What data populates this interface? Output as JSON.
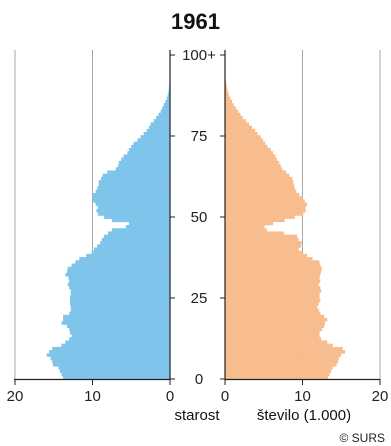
{
  "chart_data": {
    "type": "bar",
    "orientation": "horizontal",
    "subtype": "population-pyramid",
    "title": "1961",
    "xlabel": "število (1.000)",
    "ylabel": "starost",
    "credit": "© SURS",
    "age_ticks": [
      "0",
      "25",
      "50",
      "75",
      "100+"
    ],
    "age_tick_values": [
      0,
      25,
      50,
      75,
      100
    ],
    "x_ticks_left": [
      20,
      10,
      0
    ],
    "x_ticks_right": [
      0,
      10,
      20
    ],
    "xlim": [
      0,
      20
    ],
    "ylim": [
      0,
      100
    ],
    "grid": true,
    "colors": {
      "left": "#7fc4ea",
      "right": "#f8bd8e"
    },
    "series": [
      {
        "side": "left",
        "values": [
          13.8,
          14.0,
          14.2,
          14.4,
          15.1,
          15.2,
          15.4,
          15.9,
          15.6,
          15.2,
          14.0,
          13.5,
          13.0,
          12.7,
          12.9,
          13.0,
          13.3,
          14.0,
          13.8,
          13.8,
          13.0,
          12.8,
          12.8,
          12.9,
          12.9,
          12.9,
          12.8,
          12.8,
          13.0,
          13.2,
          13.0,
          13.1,
          13.5,
          13.3,
          13.2,
          12.7,
          12.2,
          11.7,
          10.8,
          10.1,
          9.8,
          9.4,
          9.0,
          8.8,
          8.5,
          8.0,
          7.5,
          5.7,
          5.3,
          7.5,
          8.5,
          9.3,
          9.5,
          9.3,
          9.6,
          9.9,
          10.0,
          10.0,
          9.6,
          9.4,
          9.2,
          9.2,
          8.9,
          8.7,
          8.1,
          7.0,
          6.7,
          6.6,
          6.3,
          6.0,
          5.5,
          5.3,
          5.0,
          4.7,
          4.2,
          3.8,
          3.4,
          3.0,
          2.7,
          2.5,
          2.1,
          1.8,
          1.5,
          1.2,
          1.0,
          0.8,
          0.6,
          0.4,
          0.3,
          0.2,
          0.15,
          0.1,
          0.07,
          0.05,
          0.03,
          0.02,
          0.01,
          0.01,
          0.005,
          0.003,
          0.01
        ]
      },
      {
        "side": "right",
        "values": [
          13.3,
          13.5,
          13.7,
          13.9,
          14.4,
          14.6,
          14.7,
          15.0,
          15.5,
          15.2,
          13.9,
          13.2,
          12.4,
          12.2,
          12.2,
          12.5,
          12.8,
          12.9,
          13.2,
          12.8,
          12.3,
          12.1,
          11.9,
          12.1,
          12.3,
          12.2,
          12.2,
          12.4,
          12.3,
          12.1,
          12.3,
          12.2,
          12.3,
          12.4,
          12.5,
          12.3,
          12.2,
          11.3,
          10.6,
          9.9,
          9.5,
          9.8,
          9.9,
          9.5,
          9.3,
          7.6,
          5.4,
          5.1,
          6.2,
          7.7,
          9.0,
          10.1,
          10.4,
          10.4,
          10.6,
          10.3,
          10.0,
          9.6,
          9.2,
          9.0,
          8.9,
          8.8,
          8.7,
          8.3,
          7.9,
          7.4,
          7.2,
          7.0,
          6.7,
          6.5,
          6.2,
          5.9,
          5.5,
          5.2,
          4.9,
          4.6,
          4.2,
          3.9,
          3.5,
          3.1,
          2.7,
          2.3,
          2.0,
          1.7,
          1.4,
          1.1,
          0.9,
          0.7,
          0.5,
          0.4,
          0.3,
          0.22,
          0.15,
          0.1,
          0.07,
          0.05,
          0.03,
          0.02,
          0.01,
          0.006,
          0.02
        ]
      }
    ]
  }
}
